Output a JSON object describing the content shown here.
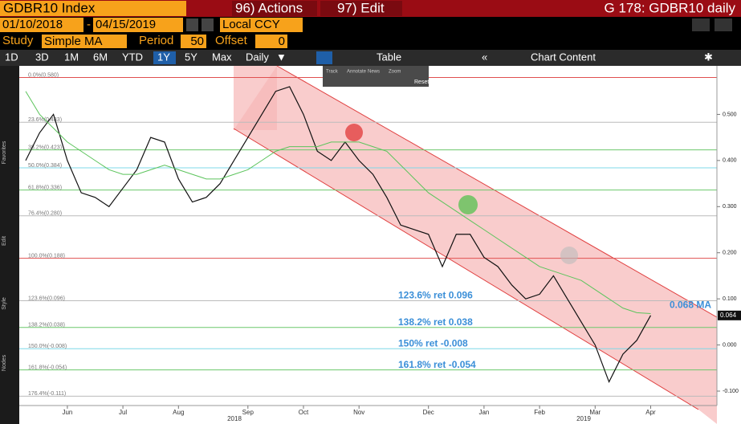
{
  "ui": {
    "security": "GDBR10 Index",
    "actions": "96) Actions",
    "edit": "97) Edit",
    "chart_name": "G 178: GDBR10 daily",
    "start_date": "01/10/2018",
    "end_date": "04/15/2019",
    "currency": "Local CCY",
    "study_label": "Study",
    "study": "Simple MA",
    "period_label": "Period",
    "period": 50,
    "offset_label": "Offset",
    "offset": 0,
    "ranges": [
      "1D",
      "3D",
      "1M",
      "6M",
      "YTD",
      "1Y",
      "5Y",
      "Max"
    ],
    "active_range": 5,
    "frequency": "Daily",
    "table": "Table",
    "chart_content": "Chart Content",
    "tools": [
      "Track",
      "Annotate",
      "News",
      "Zoom"
    ],
    "reset": "Reset",
    "sidebar": [
      "Favorites",
      "Edit",
      "Style",
      "Nodes"
    ]
  },
  "chart_data": {
    "type": "line",
    "categories": [
      null,
      null,
      null,
      "Jun",
      null,
      null,
      null,
      "Jul",
      null,
      null,
      null,
      "Aug",
      null,
      null,
      null,
      null,
      "Sep",
      null,
      null,
      null,
      "Oct",
      null,
      null,
      null,
      "Nov",
      null,
      null,
      null,
      null,
      "Dec",
      null,
      null,
      null,
      "Jan",
      null,
      null,
      null,
      "Feb",
      null,
      null,
      null,
      "Mar",
      null,
      null,
      null,
      "Apr"
    ],
    "year_labels": [
      "2018",
      "2019"
    ],
    "series": [
      {
        "color": "#111111",
        "values": [
          0.4,
          0.46,
          0.5,
          0.4,
          0.33,
          0.32,
          0.3,
          0.34,
          0.38,
          0.45,
          0.44,
          0.36,
          0.31,
          0.32,
          0.35,
          0.4,
          0.45,
          0.5,
          0.55,
          0.56,
          0.5,
          0.42,
          0.4,
          0.44,
          0.4,
          0.37,
          0.32,
          0.26,
          0.25,
          0.24,
          0.17,
          0.24,
          0.24,
          0.19,
          0.17,
          0.13,
          0.1,
          0.11,
          0.15,
          0.1,
          0.05,
          0.0,
          -0.08,
          -0.02,
          0.01,
          0.064
        ]
      },
      {
        "color": "#5cc45c",
        "values": [
          0.55,
          0.5,
          0.47,
          0.44,
          0.42,
          0.4,
          0.38,
          0.37,
          0.37,
          0.38,
          0.39,
          0.38,
          0.37,
          0.36,
          0.36,
          0.37,
          0.38,
          0.4,
          0.42,
          0.43,
          0.43,
          0.43,
          0.44,
          0.44,
          0.44,
          0.43,
          0.42,
          0.39,
          0.36,
          0.33,
          0.31,
          0.29,
          0.27,
          0.25,
          0.23,
          0.21,
          0.19,
          0.17,
          0.16,
          0.15,
          0.14,
          0.12,
          0.1,
          0.08,
          0.07,
          0.068
        ]
      }
    ],
    "ylim": [
      -0.14,
      0.6
    ],
    "yticks": [
      {
        "value": 0.5,
        "label": "0.500"
      },
      {
        "value": 0.4,
        "label": "0.400"
      },
      {
        "value": 0.3,
        "label": "0.300"
      },
      {
        "value": 0.2,
        "label": "0.200"
      },
      {
        "value": 0.1,
        "label": "0.100"
      },
      {
        "value": 0,
        "label": "0.000"
      },
      {
        "value": -0.1,
        "label": "-0.100"
      }
    ],
    "levels": [
      {
        "value": 0.58,
        "label": "0.0%(0.580)",
        "color": "#e05050"
      },
      {
        "value": 0.483,
        "label": "23.6%(0.483)",
        "color": "#bbbbbb"
      },
      {
        "value": 0.423,
        "label": "38.2%(0.423)",
        "color": "#6cc86c"
      },
      {
        "value": 0.384,
        "label": "50.0%(0.384)",
        "color": "#7fd8e8"
      },
      {
        "value": 0.336,
        "label": "61.8%(0.336)",
        "color": "#6cc86c"
      },
      {
        "value": 0.28,
        "label": "76.4%(0.280)",
        "color": "#bbbbbb"
      },
      {
        "value": 0.188,
        "label": "100.0%(0.188)",
        "color": "#e05050"
      },
      {
        "value": 0.096,
        "label": "123.6%(0.096)",
        "color": "#bbbbbb"
      },
      {
        "value": 0.038,
        "label": "138.2%(0.038)",
        "color": "#6cc86c"
      },
      {
        "value": -0.008,
        "label": "150.0%(-0.008)",
        "color": "#7fd8e8"
      },
      {
        "value": -0.054,
        "label": "161.8%(-0.054)",
        "color": "#6cc86c"
      },
      {
        "value": -0.111,
        "label": "176.4%(-0.111)",
        "color": "#bbbbbb"
      }
    ],
    "annotations": [
      {
        "label": "123.6% ret 0.096",
        "value": 0.096
      },
      {
        "label": "138.2% ret 0.038",
        "value": 0.038
      },
      {
        "label": "150% ret -0.008",
        "value": -0.008
      },
      {
        "label": "161.8% ret -0.054",
        "value": -0.054
      }
    ],
    "ma_label": {
      "label": "0.068 MA",
      "value": 0.068
    },
    "last_price": {
      "label": "0.064",
      "value": 0.064
    }
  }
}
